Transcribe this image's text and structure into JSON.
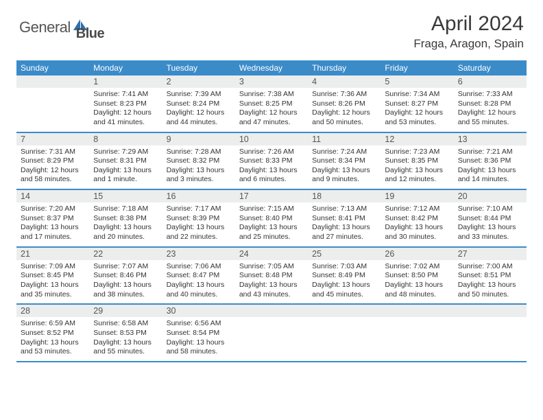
{
  "logo": {
    "text1": "General",
    "text2": "Blue"
  },
  "title": "April 2024",
  "location": "Fraga, Aragon, Spain",
  "colors": {
    "header_bg": "#3b8bc9",
    "band_bg": "#eceded",
    "border": "#3b8bc9",
    "text": "#333333",
    "logo_color": "#2f6fab"
  },
  "weekdays": [
    "Sunday",
    "Monday",
    "Tuesday",
    "Wednesday",
    "Thursday",
    "Friday",
    "Saturday"
  ],
  "weeks": [
    [
      {
        "num": "",
        "lines": []
      },
      {
        "num": "1",
        "lines": [
          "Sunrise: 7:41 AM",
          "Sunset: 8:23 PM",
          "Daylight: 12 hours and 41 minutes."
        ]
      },
      {
        "num": "2",
        "lines": [
          "Sunrise: 7:39 AM",
          "Sunset: 8:24 PM",
          "Daylight: 12 hours and 44 minutes."
        ]
      },
      {
        "num": "3",
        "lines": [
          "Sunrise: 7:38 AM",
          "Sunset: 8:25 PM",
          "Daylight: 12 hours and 47 minutes."
        ]
      },
      {
        "num": "4",
        "lines": [
          "Sunrise: 7:36 AM",
          "Sunset: 8:26 PM",
          "Daylight: 12 hours and 50 minutes."
        ]
      },
      {
        "num": "5",
        "lines": [
          "Sunrise: 7:34 AM",
          "Sunset: 8:27 PM",
          "Daylight: 12 hours and 53 minutes."
        ]
      },
      {
        "num": "6",
        "lines": [
          "Sunrise: 7:33 AM",
          "Sunset: 8:28 PM",
          "Daylight: 12 hours and 55 minutes."
        ]
      }
    ],
    [
      {
        "num": "7",
        "lines": [
          "Sunrise: 7:31 AM",
          "Sunset: 8:29 PM",
          "Daylight: 12 hours and 58 minutes."
        ]
      },
      {
        "num": "8",
        "lines": [
          "Sunrise: 7:29 AM",
          "Sunset: 8:31 PM",
          "Daylight: 13 hours and 1 minute."
        ]
      },
      {
        "num": "9",
        "lines": [
          "Sunrise: 7:28 AM",
          "Sunset: 8:32 PM",
          "Daylight: 13 hours and 3 minutes."
        ]
      },
      {
        "num": "10",
        "lines": [
          "Sunrise: 7:26 AM",
          "Sunset: 8:33 PM",
          "Daylight: 13 hours and 6 minutes."
        ]
      },
      {
        "num": "11",
        "lines": [
          "Sunrise: 7:24 AM",
          "Sunset: 8:34 PM",
          "Daylight: 13 hours and 9 minutes."
        ]
      },
      {
        "num": "12",
        "lines": [
          "Sunrise: 7:23 AM",
          "Sunset: 8:35 PM",
          "Daylight: 13 hours and 12 minutes."
        ]
      },
      {
        "num": "13",
        "lines": [
          "Sunrise: 7:21 AM",
          "Sunset: 8:36 PM",
          "Daylight: 13 hours and 14 minutes."
        ]
      }
    ],
    [
      {
        "num": "14",
        "lines": [
          "Sunrise: 7:20 AM",
          "Sunset: 8:37 PM",
          "Daylight: 13 hours and 17 minutes."
        ]
      },
      {
        "num": "15",
        "lines": [
          "Sunrise: 7:18 AM",
          "Sunset: 8:38 PM",
          "Daylight: 13 hours and 20 minutes."
        ]
      },
      {
        "num": "16",
        "lines": [
          "Sunrise: 7:17 AM",
          "Sunset: 8:39 PM",
          "Daylight: 13 hours and 22 minutes."
        ]
      },
      {
        "num": "17",
        "lines": [
          "Sunrise: 7:15 AM",
          "Sunset: 8:40 PM",
          "Daylight: 13 hours and 25 minutes."
        ]
      },
      {
        "num": "18",
        "lines": [
          "Sunrise: 7:13 AM",
          "Sunset: 8:41 PM",
          "Daylight: 13 hours and 27 minutes."
        ]
      },
      {
        "num": "19",
        "lines": [
          "Sunrise: 7:12 AM",
          "Sunset: 8:42 PM",
          "Daylight: 13 hours and 30 minutes."
        ]
      },
      {
        "num": "20",
        "lines": [
          "Sunrise: 7:10 AM",
          "Sunset: 8:44 PM",
          "Daylight: 13 hours and 33 minutes."
        ]
      }
    ],
    [
      {
        "num": "21",
        "lines": [
          "Sunrise: 7:09 AM",
          "Sunset: 8:45 PM",
          "Daylight: 13 hours and 35 minutes."
        ]
      },
      {
        "num": "22",
        "lines": [
          "Sunrise: 7:07 AM",
          "Sunset: 8:46 PM",
          "Daylight: 13 hours and 38 minutes."
        ]
      },
      {
        "num": "23",
        "lines": [
          "Sunrise: 7:06 AM",
          "Sunset: 8:47 PM",
          "Daylight: 13 hours and 40 minutes."
        ]
      },
      {
        "num": "24",
        "lines": [
          "Sunrise: 7:05 AM",
          "Sunset: 8:48 PM",
          "Daylight: 13 hours and 43 minutes."
        ]
      },
      {
        "num": "25",
        "lines": [
          "Sunrise: 7:03 AM",
          "Sunset: 8:49 PM",
          "Daylight: 13 hours and 45 minutes."
        ]
      },
      {
        "num": "26",
        "lines": [
          "Sunrise: 7:02 AM",
          "Sunset: 8:50 PM",
          "Daylight: 13 hours and 48 minutes."
        ]
      },
      {
        "num": "27",
        "lines": [
          "Sunrise: 7:00 AM",
          "Sunset: 8:51 PM",
          "Daylight: 13 hours and 50 minutes."
        ]
      }
    ],
    [
      {
        "num": "28",
        "lines": [
          "Sunrise: 6:59 AM",
          "Sunset: 8:52 PM",
          "Daylight: 13 hours and 53 minutes."
        ]
      },
      {
        "num": "29",
        "lines": [
          "Sunrise: 6:58 AM",
          "Sunset: 8:53 PM",
          "Daylight: 13 hours and 55 minutes."
        ]
      },
      {
        "num": "30",
        "lines": [
          "Sunrise: 6:56 AM",
          "Sunset: 8:54 PM",
          "Daylight: 13 hours and 58 minutes."
        ]
      },
      {
        "num": "",
        "lines": []
      },
      {
        "num": "",
        "lines": []
      },
      {
        "num": "",
        "lines": []
      },
      {
        "num": "",
        "lines": []
      }
    ]
  ]
}
